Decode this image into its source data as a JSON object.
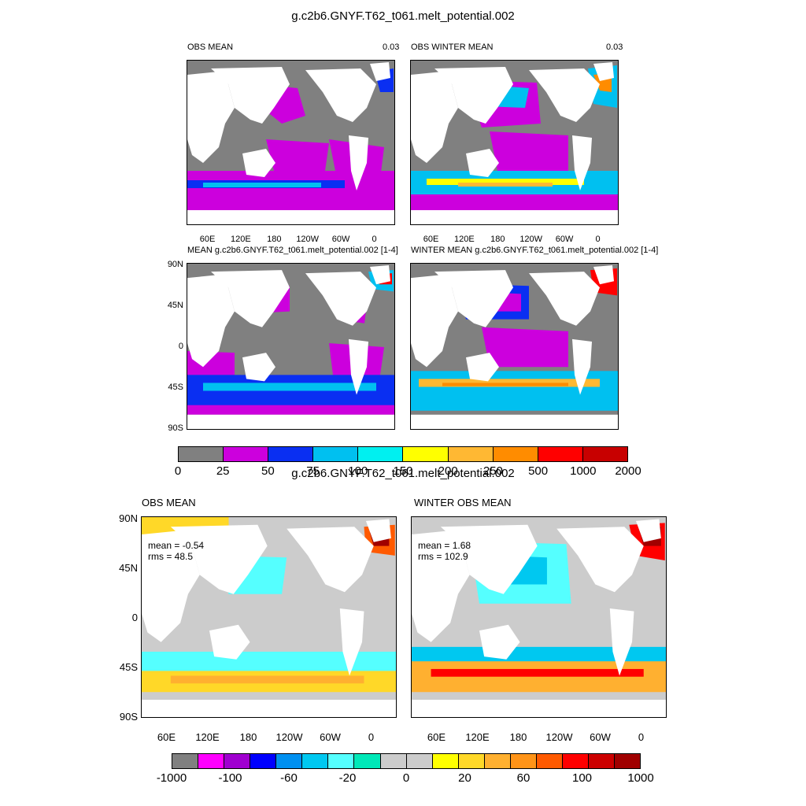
{
  "figure1": {
    "title": "g.c2b6.GNYF.T62_t061.melt_potential.002",
    "panels": [
      {
        "title": "OBS MEAN",
        "corner": "0.03"
      },
      {
        "title": "OBS WINTER MEAN",
        "corner": "0.03"
      },
      {
        "title": "MEAN g.c2b6.GNYF.T62_t061.melt_potential.002 [1-4]",
        "corner": ""
      },
      {
        "title": "WINTER MEAN g.c2b6.GNYF.T62_t061.melt_potential.002 [1-4]",
        "corner": ""
      }
    ],
    "lon_ticks": [
      "60E",
      "120E",
      "180",
      "120W",
      "60W",
      "0"
    ],
    "lat_ticks": [
      "90N",
      "45N",
      "0",
      "45S",
      "90S"
    ],
    "colorbar": {
      "colors": [
        "#808080",
        "#cc00dd",
        "#0a2ff2",
        "#00c0f0",
        "#00f0f0",
        "#ffff00",
        "#ffb833",
        "#ff8c00",
        "#ff0000",
        "#c80000"
      ],
      "labels": [
        "0",
        "25",
        "50",
        "75",
        "100",
        "150",
        "200",
        "250",
        "500",
        "1000",
        "2000"
      ]
    }
  },
  "figure2": {
    "title": "g.c2b6.GNYF.T62_t061.melt_potential.002",
    "panels": [
      {
        "title": "OBS MEAN",
        "mean": "mean = -0.54",
        "rms": "rms = 48.5"
      },
      {
        "title": "WINTER OBS MEAN",
        "mean": "mean = 1.68",
        "rms": "rms = 102.9"
      }
    ],
    "lon_ticks": [
      "60E",
      "120E",
      "180",
      "120W",
      "60W",
      "0"
    ],
    "lat_ticks": [
      "90N",
      "45N",
      "0",
      "45S",
      "90S"
    ],
    "colorbar": {
      "colors": [
        "#808080",
        "#ff00ff",
        "#a000d0",
        "#0000ff",
        "#0090f0",
        "#00c8f0",
        "#55ffff",
        "#00e8b8",
        "#cccccc",
        "#cccccc",
        "#ffff00",
        "#ffd828",
        "#ffb030",
        "#ff9418",
        "#ff5a00",
        "#ff0000",
        "#cc0000",
        "#a00000"
      ],
      "labels": [
        "-1000",
        "-100",
        "-60",
        "-20",
        "0",
        "20",
        "60",
        "100",
        "1000"
      ]
    }
  },
  "colors": {
    "land": "#ffffff",
    "ocean_dark": "#808080",
    "ocean_light": "#cccccc"
  }
}
